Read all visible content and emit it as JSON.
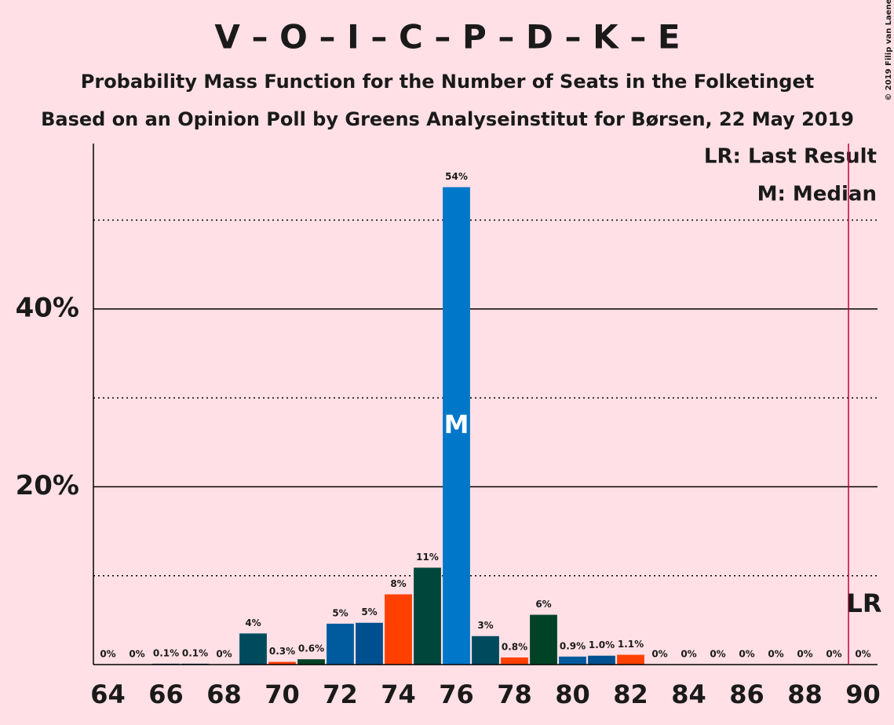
{
  "chart_data": {
    "type": "bar",
    "title": "V – O – I – C – P – D – K – E",
    "subtitle": "Probability Mass Function for the Number of Seats in the Folketinget",
    "subtitle2": "Based on an Opinion Poll by Greens Analyseinstitut for Børsen, 22 May 2019",
    "copyright": "© 2019 Filip van Laenen",
    "x": [
      64,
      65,
      66,
      67,
      68,
      69,
      70,
      71,
      72,
      73,
      74,
      75,
      76,
      77,
      78,
      79,
      80,
      81,
      82,
      83,
      84,
      85,
      86,
      87,
      88,
      89,
      90
    ],
    "values": [
      0,
      0,
      0.1,
      0.1,
      0,
      3.5,
      0.3,
      0.6,
      4.6,
      4.7,
      7.9,
      10.9,
      53.7,
      3.2,
      0.8,
      5.6,
      0.9,
      1.0,
      1.1,
      0,
      0,
      0,
      0,
      0,
      0,
      0,
      0
    ],
    "value_labels": [
      "0%",
      "0%",
      "0.1%",
      "0.1%",
      "0%",
      "4%",
      "0.3%",
      "0.6%",
      "5%",
      "5%",
      "8%",
      "11%",
      "54%",
      "3%",
      "0.8%",
      "6%",
      "0.9%",
      "1.0%",
      "1.1%",
      "0%",
      "0%",
      "0%",
      "0%",
      "0%",
      "0%",
      "0%",
      "0%"
    ],
    "colors": [
      "#004a5e",
      "#004a5e",
      "#004a5e",
      "#004a5e",
      "#004a5e",
      "#004a5e",
      "#ff3b00",
      "#004225",
      "#005a9e",
      "#005090",
      "#ff4000",
      "#00463a",
      "#0077c8",
      "#004a5e",
      "#ff4000",
      "#004225",
      "#005a9e",
      "#005090",
      "#ff4000",
      "#004a5e",
      "#004a5e",
      "#004a5e",
      "#004a5e",
      "#004a5e",
      "#004a5e",
      "#004a5e",
      "#004a5e"
    ],
    "xlim": [
      63.5,
      90.5
    ],
    "xticks": [
      64,
      66,
      68,
      70,
      72,
      74,
      76,
      78,
      80,
      82,
      84,
      86,
      88,
      90
    ],
    "ylim": [
      0,
      58.6
    ],
    "yticks": [
      {
        "value": 20,
        "label": "20%"
      },
      {
        "value": 40,
        "label": "40%"
      }
    ],
    "minor_yticks": [
      10,
      30,
      50
    ],
    "median": 76,
    "median_label": "M",
    "last_result": 89.5,
    "last_result_label": "LR",
    "legend": [
      "LR: Last Result",
      "M: Median"
    ]
  }
}
